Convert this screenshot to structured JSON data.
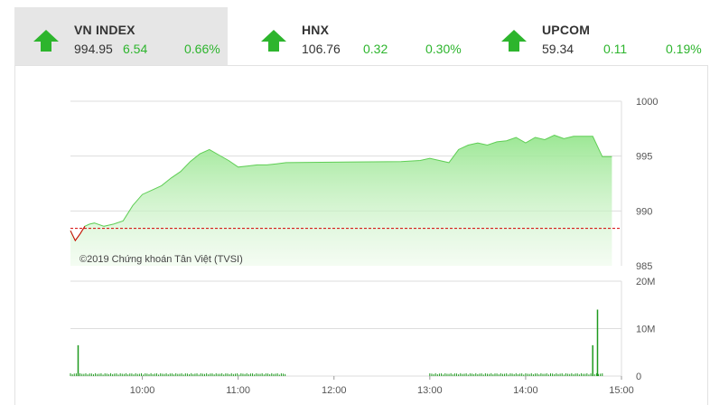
{
  "tabs": [
    {
      "name": "VN INDEX",
      "value": "994.95",
      "change": "6.54",
      "percent": "0.66%",
      "direction": "up",
      "active": true
    },
    {
      "name": "HNX",
      "value": "106.76",
      "change": "0.32",
      "percent": "0.30%",
      "direction": "up",
      "active": false
    },
    {
      "name": "UPCOM",
      "value": "59.34",
      "change": "0.11",
      "percent": "0.19%",
      "direction": "up",
      "active": false
    }
  ],
  "colors": {
    "up": "#2db52d",
    "area_top": "#97e68f",
    "area_bottom": "#e9f9e6",
    "line": "#5fce55",
    "reference": "#d40000",
    "volume": "#1e9a1e",
    "grid": "#dddddd"
  },
  "chart_data": [
    {
      "type": "area",
      "title": "",
      "watermark": "©2019 Chứng khoán Tân Việt (TVSI)",
      "ylim": [
        985,
        1000
      ],
      "yticks": [
        "1000",
        "995",
        "990",
        "985"
      ],
      "reference_value": 988.41,
      "x_hours": [
        9.25,
        9.3,
        9.35,
        9.4,
        9.45,
        9.5,
        9.6,
        9.7,
        9.8,
        9.9,
        10.0,
        10.1,
        10.2,
        10.3,
        10.4,
        10.5,
        10.6,
        10.7,
        10.8,
        10.9,
        11.0,
        11.1,
        11.2,
        11.3,
        11.4,
        11.5,
        12.7,
        12.9,
        13.0,
        13.2,
        13.3,
        13.4,
        13.5,
        13.6,
        13.7,
        13.8,
        13.9,
        14.0,
        14.1,
        14.2,
        14.3,
        14.4,
        14.5,
        14.6,
        14.7,
        14.8,
        14.9
      ],
      "values": [
        988.2,
        987.3,
        987.9,
        988.6,
        988.8,
        988.9,
        988.6,
        988.8,
        989.1,
        990.5,
        991.5,
        991.9,
        992.3,
        993.0,
        993.6,
        994.5,
        995.2,
        995.6,
        995.1,
        994.6,
        994.0,
        994.1,
        994.2,
        994.2,
        994.3,
        994.4,
        994.5,
        994.6,
        994.8,
        994.4,
        995.6,
        996.0,
        996.2,
        996.0,
        996.3,
        996.4,
        996.7,
        996.2,
        996.7,
        996.5,
        996.9,
        996.6,
        996.8,
        996.8,
        996.8,
        994.95,
        994.95
      ],
      "series": [
        {
          "name": "VN INDEX",
          "values": "values"
        }
      ]
    },
    {
      "type": "bar",
      "title": "",
      "ylim": [
        0,
        20
      ],
      "yticks": [
        "20M",
        "10M",
        "0"
      ],
      "xticks": [
        "10:00",
        "11:00",
        "12:00",
        "13:00",
        "14:00",
        "15:00"
      ],
      "xlim_hours": [
        9.25,
        15.0
      ],
      "volume_hours": [
        9.33,
        14.7,
        14.75
      ],
      "volume_millions": [
        6.5,
        6.5,
        14.0
      ],
      "small_volume_session1": [
        9.25,
        11.5
      ],
      "small_volume_session2": [
        13.0,
        14.8
      ],
      "small_volume_level": 0.6
    }
  ]
}
